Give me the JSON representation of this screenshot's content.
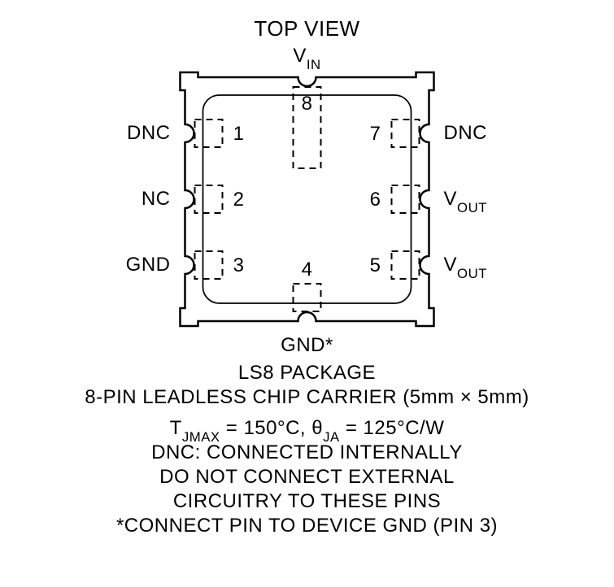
{
  "header": {
    "top_view": "TOP VIEW"
  },
  "pins": {
    "top": {
      "num": "8",
      "label_main": "V",
      "label_sub": "IN"
    },
    "bottom": {
      "num": "4",
      "label": "GND*"
    },
    "left": [
      {
        "num": "1",
        "label": "DNC"
      },
      {
        "num": "2",
        "label": "NC"
      },
      {
        "num": "3",
        "label": "GND"
      }
    ],
    "right": [
      {
        "num": "7",
        "label": "DNC"
      },
      {
        "num": "6",
        "label_main": "V",
        "label_sub": "OUT"
      },
      {
        "num": "5",
        "label_main": "V",
        "label_sub": "OUT"
      }
    ]
  },
  "footer": {
    "package": "LS8 PACKAGE",
    "desc": "8-PIN LEADLESS CHIP CARRIER (5mm × 5mm)",
    "thermal_pre": "T",
    "thermal_sub1": "JMAX",
    "thermal_mid": " = 150°C, θ",
    "thermal_sub2": "JA",
    "thermal_post": " = 125°C/W",
    "dnc": "DNC: CONNECTED INTERNALLY",
    "warn1": "DO NOT CONNECT EXTERNAL",
    "warn2": "CIRCUITRY TO THESE PINS",
    "note": "*CONNECT PIN TO DEVICE GND (PIN 3)"
  },
  "style": {
    "pkg_size": 300,
    "stroke": "#000000",
    "stroke_w": 2.5,
    "dash": "8,6",
    "font_label": 24,
    "font_header": 26,
    "font_footer": 24,
    "font_pin": 24
  }
}
